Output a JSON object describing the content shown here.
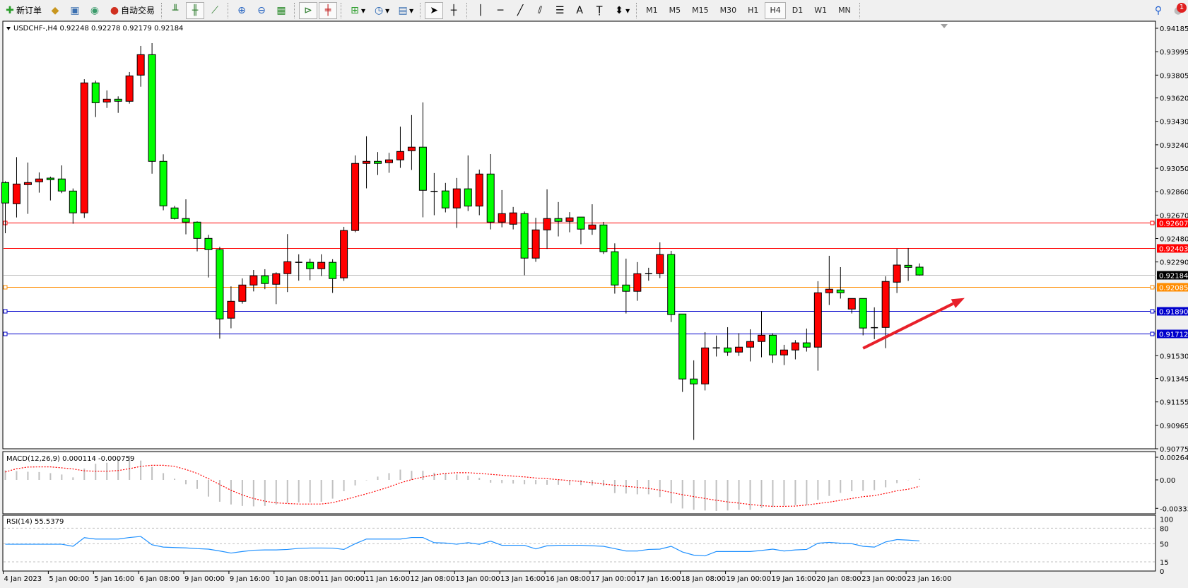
{
  "toolbar": {
    "new_order_label": "新订单",
    "auto_trading_label": "自动交易",
    "timeframes": [
      "M1",
      "M5",
      "M15",
      "M30",
      "H1",
      "H4",
      "D1",
      "W1",
      "MN"
    ],
    "active_timeframe": "H4",
    "notification_count": "1",
    "icons": [
      "new-order-icon",
      "market-watch-icon",
      "navigator-icon",
      "signals-icon",
      "auto-trading-icon",
      "bar-chart-icon",
      "candlestick-icon",
      "line-chart-icon",
      "zoom-in-icon",
      "zoom-out-icon",
      "tile-windows-icon",
      "chart-shift-icon",
      "auto-scroll-icon",
      "indicators-icon",
      "periods-icon",
      "templates-icon",
      "cursor-icon",
      "crosshair-icon",
      "vertical-line-icon",
      "horizontal-line-icon",
      "trendline-icon",
      "equidistant-channel-icon",
      "fibonacci-icon",
      "text-icon",
      "text-label-icon",
      "arrows-icon",
      "search-icon",
      "notification-icon"
    ]
  },
  "chart": {
    "header": "USDCHF-,H4  0.92248 0.92278 0.92179 0.92184",
    "colors": {
      "bull": "#ff0000",
      "bear": "#00ff00",
      "wick": "#000000",
      "bid_line": "#c0c0c0",
      "arrow": "#e8202a"
    }
  },
  "chart_data": [
    {
      "type": "candlestick",
      "symbol": "USDCHF-",
      "timeframe": "H4",
      "ylim": [
        0.90775,
        0.94185
      ],
      "y_ticks": [
        "0.94185",
        "0.93995",
        "0.93805",
        "0.93620",
        "0.93430",
        "0.93240",
        "0.93050",
        "0.92860",
        "0.92670",
        "0.92480",
        "0.92290",
        "0.91530",
        "0.91345",
        "0.91155",
        "0.90965",
        "0.90775"
      ],
      "x_tick_labels": [
        "4 Jan 2023",
        "5 Jan 00:00",
        "5 Jan 16:00",
        "6 Jan 08:00",
        "9 Jan 00:00",
        "9 Jan 16:00",
        "10 Jan 08:00",
        "11 Jan 00:00",
        "11 Jan 16:00",
        "12 Jan 08:00",
        "13 Jan 00:00",
        "13 Jan 16:00",
        "16 Jan 08:00",
        "17 Jan 00:00",
        "17 Jan 16:00",
        "18 Jan 08:00",
        "19 Jan 00:00",
        "19 Jan 16:00",
        "20 Jan 08:00",
        "23 Jan 00:00",
        "23 Jan 16:00"
      ],
      "ohlc_columns": [
        "open",
        "high",
        "low",
        "close"
      ],
      "ohlc": [
        [
          0.92934,
          0.92944,
          0.92523,
          0.92768
        ],
        [
          0.92762,
          0.9314,
          0.92651,
          0.92922
        ],
        [
          0.92917,
          0.93096,
          0.9268,
          0.92934
        ],
        [
          0.9294,
          0.93016,
          0.92852,
          0.92963
        ],
        [
          0.9297,
          0.92982,
          0.92789,
          0.92957
        ],
        [
          0.92963,
          0.93073,
          0.92848,
          0.92865
        ],
        [
          0.92865,
          0.92886,
          0.926,
          0.92688
        ],
        [
          0.92688,
          0.93772,
          0.92647,
          0.93742
        ],
        [
          0.93742,
          0.93761,
          0.93465,
          0.93581
        ],
        [
          0.93587,
          0.93681,
          0.93539,
          0.9361
        ],
        [
          0.9361,
          0.93633,
          0.93499,
          0.93593
        ],
        [
          0.93593,
          0.9383,
          0.93574,
          0.93799
        ],
        [
          0.93805,
          0.94042,
          0.93711,
          0.93971
        ],
        [
          0.93971,
          0.94065,
          0.93006,
          0.93106
        ],
        [
          0.93106,
          0.93163,
          0.92709,
          0.92745
        ],
        [
          0.92728,
          0.92745,
          0.92634,
          0.92642
        ],
        [
          0.92642,
          0.92798,
          0.92514,
          0.92613
        ],
        [
          0.92613,
          0.92619,
          0.92376,
          0.92481
        ],
        [
          0.92481,
          0.9251,
          0.92164,
          0.9239
        ],
        [
          0.9239,
          0.92413,
          0.91668,
          0.91828
        ],
        [
          0.91834,
          0.92092,
          0.91752,
          0.91971
        ],
        [
          0.91971,
          0.92157,
          0.91952,
          0.92103
        ],
        [
          0.92103,
          0.92225,
          0.92051,
          0.92178
        ],
        [
          0.92178,
          0.92231,
          0.92069,
          0.92115
        ],
        [
          0.92109,
          0.92206,
          0.91948,
          0.92195
        ],
        [
          0.92195,
          0.92516,
          0.92046,
          0.92292
        ],
        [
          0.92287,
          0.92352,
          0.92138,
          0.92287
        ],
        [
          0.92287,
          0.92317,
          0.92142,
          0.92235
        ],
        [
          0.92235,
          0.92352,
          0.92176,
          0.92287
        ],
        [
          0.92287,
          0.92312,
          0.92039,
          0.92155
        ],
        [
          0.92161,
          0.92575,
          0.92136,
          0.92545
        ],
        [
          0.92545,
          0.93154,
          0.92531,
          0.93089
        ],
        [
          0.93089,
          0.93309,
          0.92887,
          0.93106
        ],
        [
          0.93106,
          0.93181,
          0.92995,
          0.93089
        ],
        [
          0.93095,
          0.93175,
          0.93013,
          0.93118
        ],
        [
          0.93118,
          0.93387,
          0.93053,
          0.93186
        ],
        [
          0.93192,
          0.93481,
          0.93036,
          0.93221
        ],
        [
          0.93221,
          0.93584,
          0.92652,
          0.92871
        ],
        [
          0.92862,
          0.93011,
          0.92669,
          0.92862
        ],
        [
          0.92866,
          0.92931,
          0.92692,
          0.92728
        ],
        [
          0.92728,
          0.92971,
          0.92566,
          0.92883
        ],
        [
          0.92883,
          0.93154,
          0.92703,
          0.92743
        ],
        [
          0.92743,
          0.93039,
          0.92669,
          0.93003
        ],
        [
          0.93003,
          0.93165,
          0.92554,
          0.92613
        ],
        [
          0.92613,
          0.92873,
          0.92571,
          0.92682
        ],
        [
          0.92596,
          0.92736,
          0.92554,
          0.92688
        ],
        [
          0.92682,
          0.92699,
          0.92182,
          0.92321
        ],
        [
          0.92321,
          0.92648,
          0.92291,
          0.9255
        ],
        [
          0.9255,
          0.92879,
          0.92396,
          0.92642
        ],
        [
          0.92642,
          0.92776,
          0.92497,
          0.92619
        ],
        [
          0.92619,
          0.92694,
          0.92531,
          0.92648
        ],
        [
          0.92654,
          0.92654,
          0.92434,
          0.92556
        ],
        [
          0.92556,
          0.92758,
          0.9251,
          0.9259
        ],
        [
          0.9259,
          0.92615,
          0.92355,
          0.92373
        ],
        [
          0.92373,
          0.92441,
          0.92033,
          0.92103
        ],
        [
          0.92103,
          0.92317,
          0.91872,
          0.92052
        ],
        [
          0.92052,
          0.92289,
          0.91975,
          0.92195
        ],
        [
          0.92195,
          0.92243,
          0.92138,
          0.92195
        ],
        [
          0.92195,
          0.92449,
          0.92159,
          0.9235
        ],
        [
          0.9235,
          0.9238,
          0.91803,
          0.91863
        ],
        [
          0.91868,
          0.91868,
          0.91236,
          0.91341
        ],
        [
          0.91341,
          0.91492,
          0.90847,
          0.91301
        ],
        [
          0.91301,
          0.91721,
          0.91248,
          0.91593
        ],
        [
          0.91593,
          0.91693,
          0.91523,
          0.91593
        ],
        [
          0.91593,
          0.91761,
          0.91528,
          0.91559
        ],
        [
          0.91559,
          0.91712,
          0.91528,
          0.91599
        ],
        [
          0.91599,
          0.91744,
          0.91483,
          0.91645
        ],
        [
          0.91645,
          0.91891,
          0.91517,
          0.91696
        ],
        [
          0.91696,
          0.91712,
          0.91471,
          0.91536
        ],
        [
          0.91536,
          0.91618,
          0.91454,
          0.91576
        ],
        [
          0.91576,
          0.91656,
          0.915,
          0.91634
        ],
        [
          0.91634,
          0.9175,
          0.91563,
          0.91599
        ],
        [
          0.91599,
          0.92134,
          0.91408,
          0.9204
        ],
        [
          0.9204,
          0.9234,
          0.91941,
          0.92069
        ],
        [
          0.92063,
          0.92248,
          0.91993,
          0.9204
        ],
        [
          0.91908,
          0.91994,
          0.91872,
          0.91994
        ],
        [
          0.91994,
          0.91994,
          0.91695,
          0.91754
        ],
        [
          0.91757,
          0.91922,
          0.91664,
          0.91757
        ],
        [
          0.91759,
          0.92174,
          0.91591,
          0.92132
        ],
        [
          0.92126,
          0.92397,
          0.92038,
          0.92265
        ],
        [
          0.92263,
          0.92403,
          0.92136,
          0.92246
        ],
        [
          0.92248,
          0.92278,
          0.92179,
          0.92184
        ]
      ],
      "horizontal_lines": [
        {
          "price": "0.92607",
          "color": "#ff0000",
          "marker": true
        },
        {
          "price": "0.92403",
          "color": "#ff0000",
          "marker": false
        },
        {
          "price": "0.92184",
          "color": "#c0c0c0",
          "label_bg": "#000000",
          "marker": false
        },
        {
          "price": "0.92085",
          "color": "#ff8c00",
          "marker": true
        },
        {
          "price": "0.91890",
          "color": "#0000cc",
          "marker": true
        },
        {
          "price": "0.91712",
          "color": "#0000cc",
          "marker": true
        }
      ],
      "annotation": {
        "type": "arrow",
        "direction": "up-right",
        "color": "#e8202a",
        "from": {
          "candle": 76,
          "price": 0.9159
        },
        "to": {
          "candle": 85,
          "price": 0.91998
        }
      }
    },
    {
      "type": "bar+line",
      "title": "MACD(12,26,9) 0.000114 -0.000759",
      "ylim": [
        -0.003333,
        0.002649
      ],
      "y_ticks": [
        "0.002649",
        "0.00",
        "-0.003333"
      ],
      "histogram": [
        0.00112,
        0.00103,
        0.00095,
        0.00092,
        0.00079,
        0.00063,
        0.0003,
        0.00133,
        0.00188,
        0.00201,
        0.00242,
        0.00283,
        0.00226,
        0.00152,
        0.00079,
        0.00014,
        -0.00052,
        -0.00106,
        -0.00196,
        -0.00256,
        -0.00288,
        -0.00305,
        -0.0031,
        -0.00305,
        -0.00288,
        -0.00269,
        -0.00264,
        -0.00264,
        -0.00256,
        -0.0022,
        -0.00133,
        -0.00065,
        -5e-05,
        0.00038,
        0.00079,
        0.0012,
        0.00106,
        0.00106,
        0.00084,
        0.00076,
        0.00063,
        0.00049,
        0.00024,
        -0.00033,
        -0.00038,
        -0.00044,
        -0.00052,
        -0.00052,
        -0.00057,
        -0.00057,
        -0.0006,
        -0.0006,
        -0.00065,
        -0.00073,
        -0.00155,
        -0.0016,
        -0.00169,
        -0.00169,
        -0.00201,
        -0.00275,
        -0.00335,
        -0.00351,
        -0.00359,
        -0.00364,
        -0.00359,
        -0.00351,
        -0.00351,
        -0.00329,
        -0.00318,
        -0.00302,
        -0.00296,
        -0.00296,
        -0.00234,
        -0.00188,
        -0.00152,
        -0.00133,
        -0.00128,
        -0.0012,
        -0.00087,
        -0.00038,
        -3e-05,
        0.000114
      ],
      "signal": [
        0.00092,
        0.00131,
        0.0015,
        0.00152,
        0.00152,
        0.00141,
        0.00128,
        0.00106,
        0.00101,
        0.00101,
        0.00109,
        0.00131,
        0.00158,
        0.00171,
        0.00171,
        0.00158,
        0.00122,
        0.00076,
        0.00014,
        -0.00054,
        -0.00122,
        -0.00177,
        -0.00218,
        -0.0025,
        -0.00269,
        -0.00277,
        -0.00283,
        -0.00283,
        -0.00283,
        -0.00267,
        -0.00234,
        -0.00199,
        -0.00163,
        -0.00125,
        -0.00082,
        -0.00035,
        3e-05,
        0.00033,
        0.00057,
        0.00076,
        0.00084,
        0.00084,
        0.00076,
        0.00065,
        0.00054,
        0.00044,
        0.00035,
        0.00022,
        0.00014,
        3e-05,
        -8e-05,
        -0.00019,
        -0.00033,
        -0.00049,
        -0.00063,
        -0.00076,
        -0.00087,
        -0.00101,
        -0.0012,
        -0.00147,
        -0.00174,
        -0.00196,
        -0.00218,
        -0.00239,
        -0.00258,
        -0.00272,
        -0.00288,
        -0.00302,
        -0.0031,
        -0.0031,
        -0.00307,
        -0.00294,
        -0.00277,
        -0.00261,
        -0.00239,
        -0.00218,
        -0.00196,
        -0.00185,
        -0.00158,
        -0.00128,
        -0.00109,
        -0.000759
      ],
      "colors": {
        "histogram": "#c0c0c0",
        "signal": "#ff0000"
      }
    },
    {
      "type": "line",
      "title": "RSI(14) 55.5379",
      "ylim": [
        0,
        100
      ],
      "y_ticks": [
        "100",
        "80",
        "50",
        "15",
        "0"
      ],
      "levels": [
        80,
        50,
        15
      ],
      "values": [
        49,
        49,
        49,
        49,
        49,
        49,
        45,
        61.7,
        59,
        59,
        59,
        62,
        64,
        48,
        43.5,
        42.6,
        42,
        40.5,
        39.6,
        36,
        32,
        35,
        37.4,
        38,
        38,
        39,
        41,
        41.7,
        41.7,
        41.5,
        39,
        50,
        59,
        59,
        59,
        59,
        62,
        62,
        52,
        51.3,
        49,
        52,
        49,
        55,
        47,
        47,
        47,
        40,
        46,
        47,
        47,
        47,
        46,
        45,
        40.5,
        36,
        36,
        39,
        39.6,
        45,
        34,
        28,
        26.5,
        35,
        35,
        35,
        35,
        37,
        39.6,
        36,
        38,
        39,
        51,
        52.6,
        51,
        50,
        45,
        43.5,
        53.5,
        58,
        57,
        55.5379
      ],
      "color": "#1e90ff"
    }
  ]
}
